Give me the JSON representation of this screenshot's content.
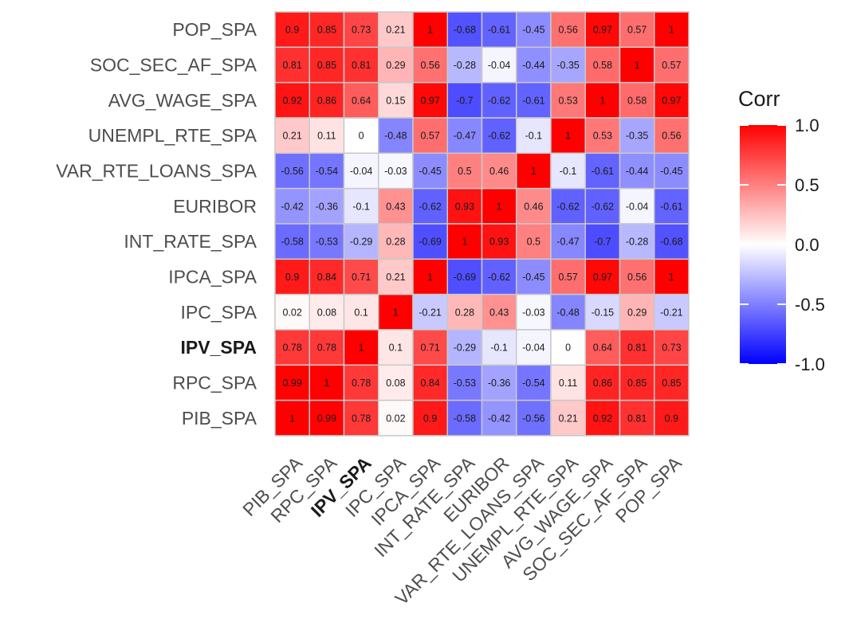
{
  "chart_data": {
    "type": "heatmap",
    "x_labels": [
      "PIB_SPA",
      "RPC_SPA",
      "IPV_SPA",
      "IPC_SPA",
      "IPCA_SPA",
      "INT_RATE_SPA",
      "EURIBOR",
      "VAR_RTE_LOANS_SPA",
      "UNEMPL_RTE_SPA",
      "AVG_WAGE_SPA",
      "SOC_SEC_AF_SPA",
      "POP_SPA"
    ],
    "y_labels_top_to_bottom": [
      "POP_SPA",
      "SOC_SEC_AF_SPA",
      "AVG_WAGE_SPA",
      "UNEMPL_RTE_SPA",
      "VAR_RTE_LOANS_SPA",
      "EURIBOR",
      "INT_RATE_SPA",
      "IPCA_SPA",
      "IPC_SPA",
      "IPV_SPA",
      "RPC_SPA",
      "PIB_SPA"
    ],
    "bold_label": "IPV_SPA",
    "values": [
      [
        0.9,
        0.85,
        0.73,
        0.21,
        1,
        -0.68,
        -0.61,
        -0.45,
        0.56,
        0.97,
        0.57,
        1
      ],
      [
        0.81,
        0.85,
        0.81,
        0.29,
        0.56,
        -0.28,
        -0.04,
        -0.44,
        -0.35,
        0.58,
        1,
        0.57
      ],
      [
        0.92,
        0.86,
        0.64,
        0.15,
        0.97,
        -0.7,
        -0.62,
        -0.61,
        0.53,
        1,
        0.58,
        0.97
      ],
      [
        0.21,
        0.11,
        0,
        -0.48,
        0.57,
        -0.47,
        -0.62,
        -0.1,
        1,
        0.53,
        -0.35,
        0.56
      ],
      [
        -0.56,
        -0.54,
        -0.04,
        -0.03,
        -0.45,
        0.5,
        0.46,
        1,
        -0.1,
        -0.61,
        -0.44,
        -0.45
      ],
      [
        -0.42,
        -0.36,
        -0.1,
        0.43,
        -0.62,
        0.93,
        1,
        0.46,
        -0.62,
        -0.62,
        -0.04,
        -0.61
      ],
      [
        -0.58,
        -0.53,
        -0.29,
        0.28,
        -0.69,
        1,
        0.93,
        0.5,
        -0.47,
        -0.7,
        -0.28,
        -0.68
      ],
      [
        0.9,
        0.84,
        0.71,
        0.21,
        1,
        -0.69,
        -0.62,
        -0.45,
        0.57,
        0.97,
        0.56,
        1
      ],
      [
        0.02,
        0.08,
        0.1,
        1,
        -0.21,
        0.28,
        0.43,
        -0.03,
        -0.48,
        -0.15,
        0.29,
        -0.21
      ],
      [
        0.78,
        0.78,
        1,
        0.1,
        0.71,
        -0.29,
        -0.1,
        -0.04,
        0,
        0.64,
        0.81,
        0.73
      ],
      [
        0.99,
        1,
        0.78,
        0.08,
        0.84,
        -0.53,
        -0.36,
        -0.54,
        0.11,
        0.86,
        0.85,
        0.85
      ],
      [
        1,
        0.99,
        0.78,
        0.02,
        0.9,
        -0.58,
        -0.42,
        -0.56,
        0.21,
        0.92,
        0.81,
        0.9
      ]
    ],
    "legend": {
      "title": "Corr",
      "ticks": [
        1.0,
        0.5,
        0.0,
        -0.5,
        -1.0
      ],
      "tick_labels": [
        "1.0",
        "0.5",
        "0.0",
        "-0.5",
        "-1.0"
      ],
      "range": [
        -1,
        1
      ],
      "colors": {
        "low": "#0000ff",
        "mid": "#ffffff",
        "high": "#ff0000"
      }
    },
    "cell_border_color": "#c8c8c8"
  }
}
